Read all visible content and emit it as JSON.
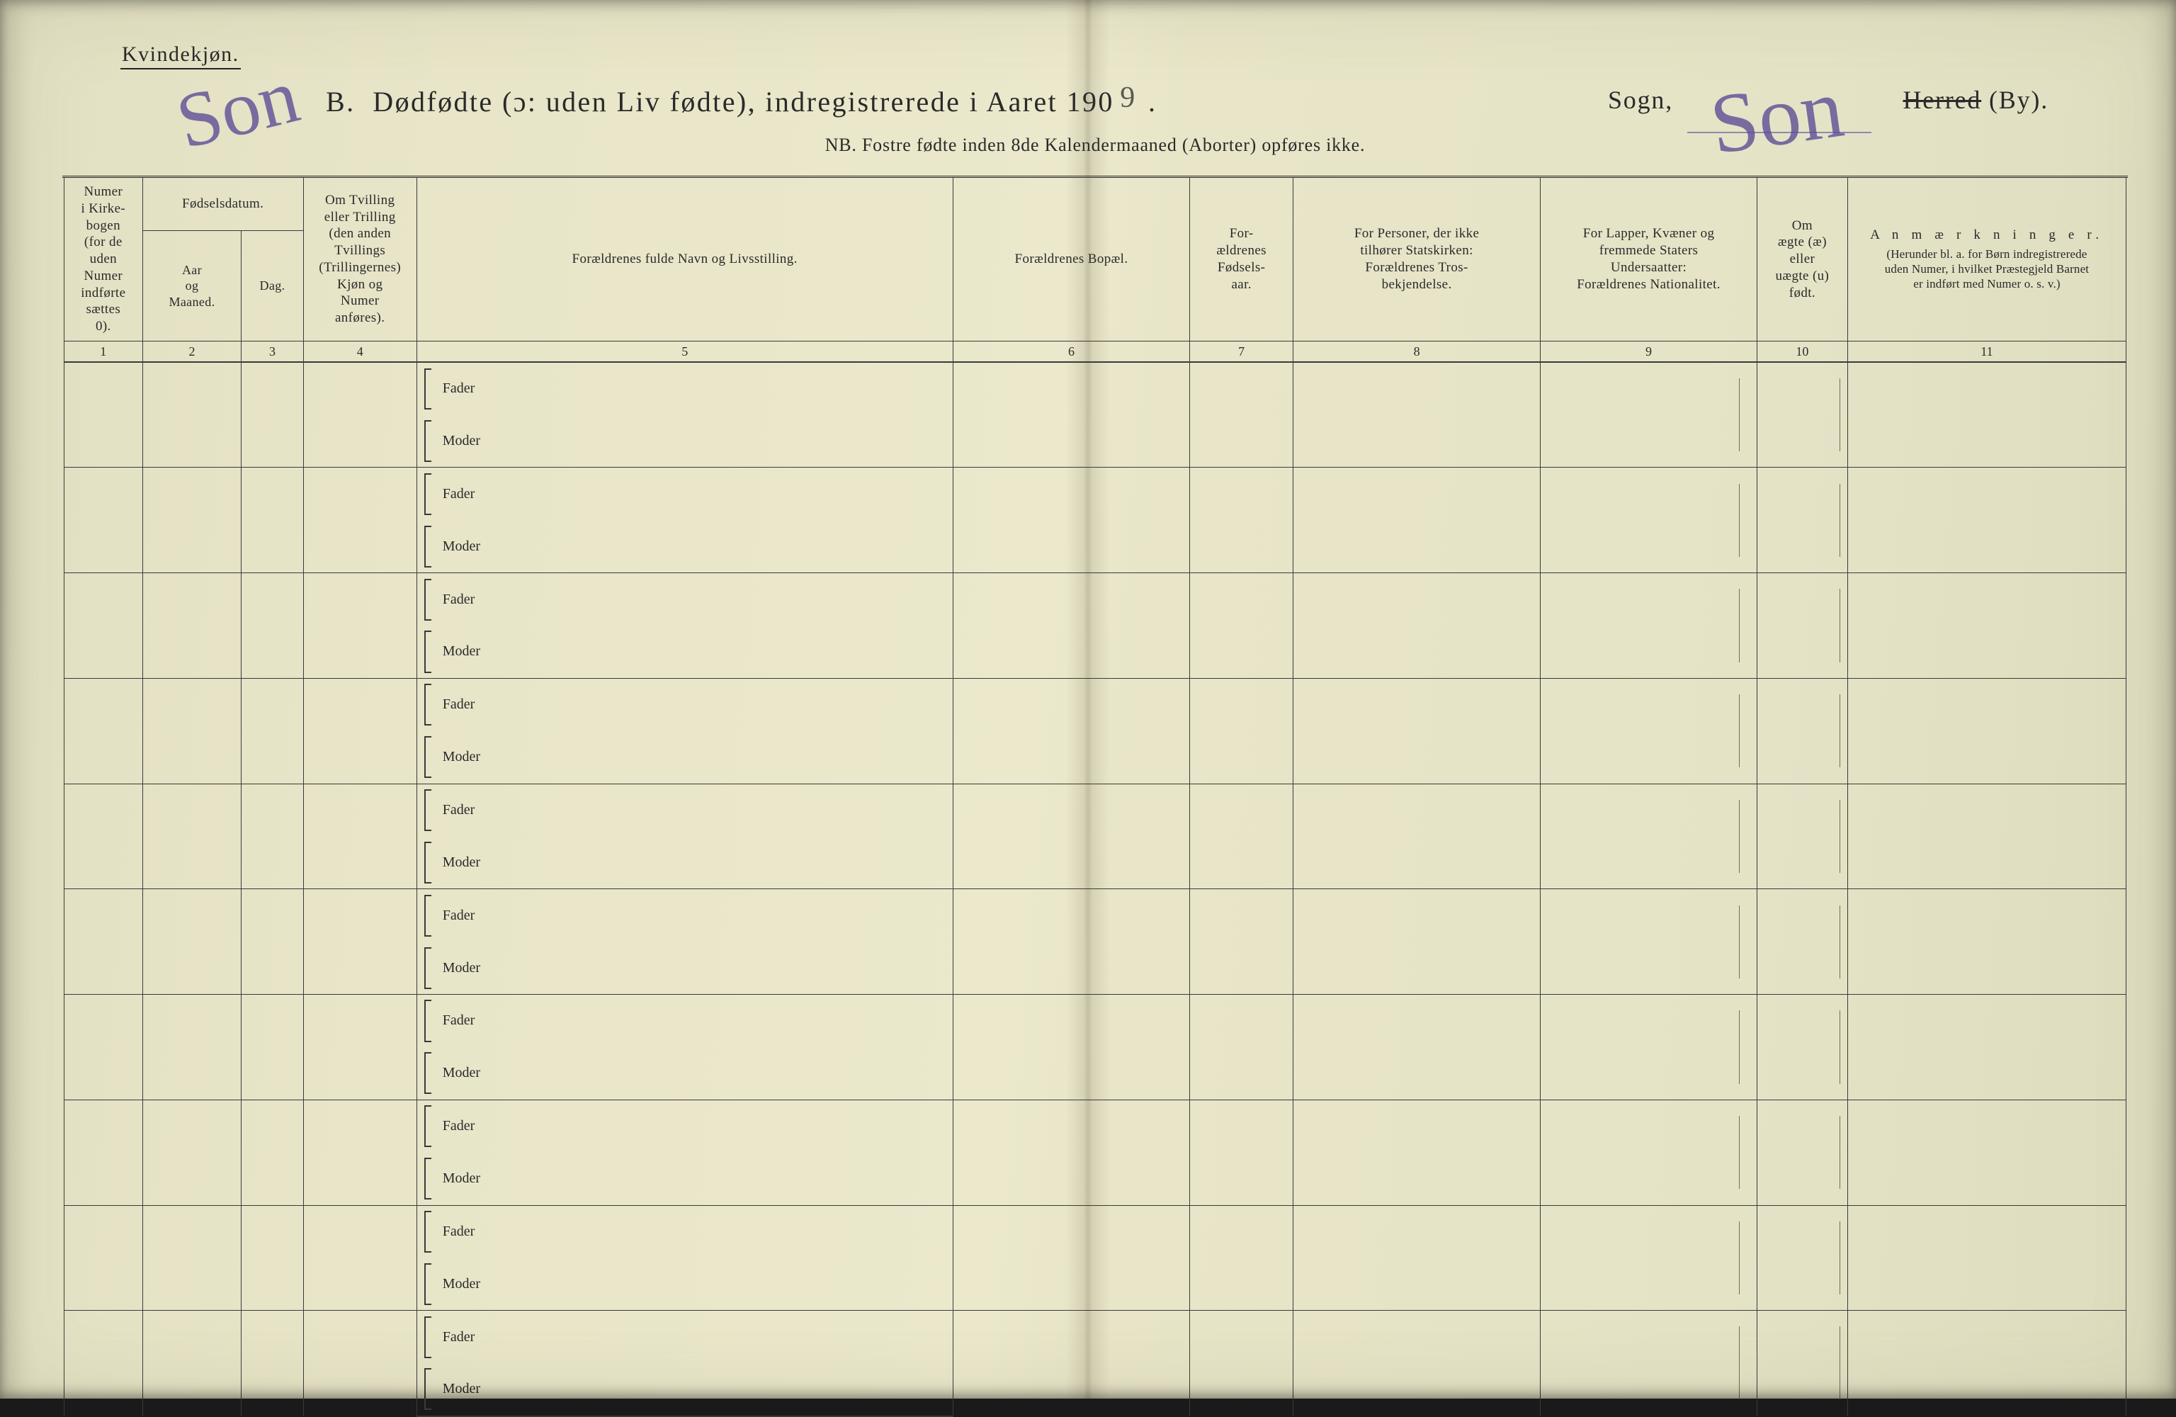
{
  "header": {
    "gender_label": "Kvindekjøn.",
    "title_prefix": "B.",
    "title_main": "Dødfødte (ɔ: uden Liv fødte), indregistrerede i Aaret 190",
    "year_digit_hand": "9",
    "sogn_label": "Sogn,",
    "herred_strike": "Herred",
    "herred_suffix": "(By).",
    "nb_text": "NB.  Fostre fødte inden 8de Kalendermaaned (Aborter) opføres ikke.",
    "handwritten_1": "Son",
    "handwritten_2": "Son"
  },
  "columns": {
    "c1": "Numer\ni Kirke-\nbogen\n(for de\nuden\nNumer\nindførte\nsættes\n0).",
    "c2_top": "Fødselsdatum.",
    "c2a": "Aar\nog\nMaaned.",
    "c2b": "Dag.",
    "c4": "Om Tvilling\neller Trilling\n(den anden\nTvillings\n(Trillingernes)\nKjøn og\nNumer\nanføres).",
    "c5": "Forældrenes fulde Navn og Livsstilling.",
    "c6": "Forældrenes Bopæl.",
    "c7": "For-\nældrenes\nFødsels-\naar.",
    "c8": "For Personer, der ikke\ntilhører Statskirken:\nForældrenes Tros-\nbekjendelse.",
    "c9": "For Lapper, Kvæner og\nfremmede Staters\nUndersaatter:\nForældrenes Nationalitet.",
    "c10": "Om\nægte (æ)\neller\nuægte (u)\nfødt.",
    "c11_top": "A n m æ r k n i n g e r.",
    "c11_sub": "(Herunder bl. a. for Børn indregistrerede\nuden Numer, i hvilket Præstegjeld Barnet\ner indført med Numer o. s. v.)"
  },
  "col_numbers": [
    "1",
    "2",
    "3",
    "4",
    "5",
    "6",
    "7",
    "8",
    "9",
    "10",
    "11"
  ],
  "row_labels": {
    "fader": "Fader",
    "moder": "Moder"
  },
  "row_count": 10,
  "layout": {
    "col_widths_pct": [
      3.8,
      4.8,
      3.0,
      5.5,
      26.0,
      11.5,
      5.0,
      12.0,
      10.5,
      4.4,
      13.5
    ]
  },
  "colors": {
    "ink": "#2a2a2a",
    "hand_ink": "#4b398f",
    "paper_from": "#e2e0c3",
    "paper_to": "#dedcbe",
    "rule": "#3a3a3a"
  }
}
